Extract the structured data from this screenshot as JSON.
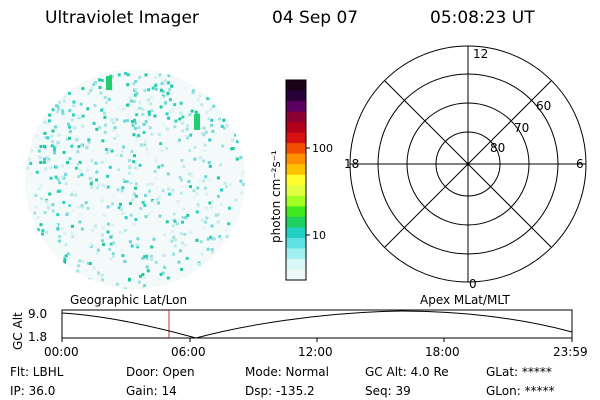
{
  "header": {
    "title": "Ultraviolet Imager",
    "date": "04 Sep 07",
    "time": "05:08:23 UT"
  },
  "colorbar": {
    "unit_label": "photon cm⁻²s⁻¹",
    "ticks": [
      "100",
      "10"
    ],
    "colors": [
      "#1a0018",
      "#2a0038",
      "#5a0060",
      "#8a0030",
      "#b00018",
      "#d81010",
      "#f05000",
      "#ff9000",
      "#ffc000",
      "#ffff30",
      "#e0ff40",
      "#a0ff20",
      "#40e820",
      "#20d060",
      "#20d0c0",
      "#60e0e0",
      "#a0f0f0",
      "#d8f8f8",
      "#eef8f8"
    ]
  },
  "polar_plot": {
    "labels": {
      "top": "12",
      "left": "18",
      "right": "6",
      "bottom": "0"
    },
    "lat_labels": [
      "60",
      "70",
      "80"
    ]
  },
  "timeline": {
    "ylabel": "GC Alt",
    "yticks": [
      "9.0",
      "1.8"
    ],
    "left_title": "Geographic Lat/Lon",
    "right_title": "Apex MLat/MLT",
    "xticks": [
      "00:00",
      "06:00",
      "12:00",
      "18:00",
      "23:59"
    ],
    "marker_time": "05:08"
  },
  "footer": {
    "row1": [
      "Flt: LBHL",
      "Door: Open",
      "Mode: Normal",
      "GC Alt: 4.0 Re",
      "GLat: *****"
    ],
    "row2": [
      "IP: 36.0",
      "Gain: 14",
      "Dsp: -135.2",
      "Seq: 39",
      "GLon: *****"
    ]
  },
  "colors": {
    "marker": "#c03030"
  }
}
